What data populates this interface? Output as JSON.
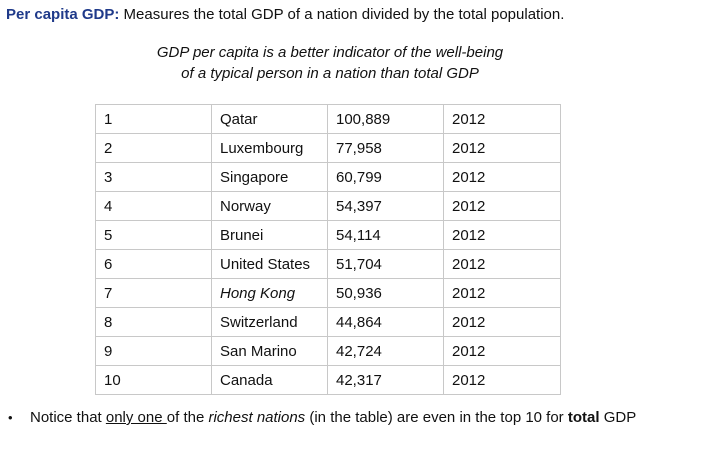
{
  "heading": {
    "term": "Per capita GDP:",
    "definition": "Measures the total GDP of a nation divided by the total population."
  },
  "caption": "GDP per capita is a better indicator of the well-being of a typical person in a nation than total GDP",
  "table": {
    "rows": [
      {
        "rank": "1",
        "country": "Qatar",
        "gdp": "100,889",
        "year": "2012",
        "italic": false
      },
      {
        "rank": "2",
        "country": "Luxembourg",
        "gdp": "77,958",
        "year": "2012",
        "italic": false
      },
      {
        "rank": "3",
        "country": "Singapore",
        "gdp": "60,799",
        "year": "2012",
        "italic": false
      },
      {
        "rank": "4",
        "country": "Norway",
        "gdp": "54,397",
        "year": "2012",
        "italic": false
      },
      {
        "rank": "5",
        "country": "Brunei",
        "gdp": "54,114",
        "year": "2012",
        "italic": false
      },
      {
        "rank": "6",
        "country": "United States",
        "gdp": "51,704",
        "year": "2012",
        "italic": false
      },
      {
        "rank": "7",
        "country": "Hong Kong",
        "gdp": "50,936",
        "year": "2012",
        "italic": true
      },
      {
        "rank": "8",
        "country": "Switzerland",
        "gdp": "44,864",
        "year": "2012",
        "italic": false
      },
      {
        "rank": "9",
        "country": "San Marino",
        "gdp": "42,724",
        "year": "2012",
        "italic": false
      },
      {
        "rank": "10",
        "country": "Canada",
        "gdp": "42,317",
        "year": "2012",
        "italic": false
      }
    ]
  },
  "note": {
    "bullet": "•",
    "p1": "Notice that ",
    "p2": "only one ",
    "p3": "of the ",
    "p4": "richest nations",
    "p5": " (in the table) are even in the top 10 for ",
    "p6": "total",
    "p7": " GDP"
  }
}
